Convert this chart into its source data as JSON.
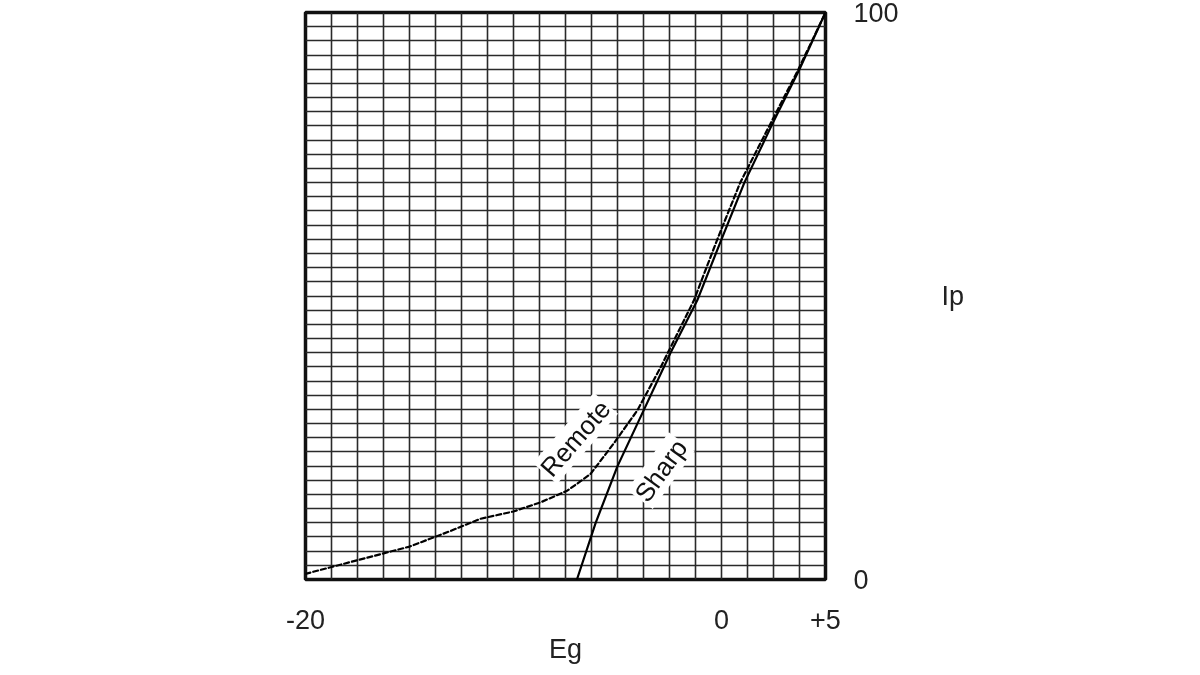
{
  "chart_data": {
    "type": "line",
    "xlabel": "Eg",
    "ylabel": "Ip",
    "xlim": [
      -20,
      5
    ],
    "ylim": [
      0,
      100
    ],
    "xticks": [
      -20,
      {
        "value": -18.75,
        "label": null
      },
      {
        "value": -17.5,
        "label": null
      },
      {
        "value": -16.25,
        "label": null
      },
      {
        "value": -15,
        "label": null
      },
      {
        "value": -13.75,
        "label": null
      },
      {
        "value": -12.5,
        "label": null
      },
      {
        "value": -11.25,
        "label": null
      },
      {
        "value": -10,
        "label": null
      },
      {
        "value": -8.75,
        "label": null
      },
      {
        "value": -7.5,
        "label": null
      },
      {
        "value": -6.25,
        "label": null
      },
      {
        "value": -5,
        "label": null
      },
      {
        "value": -3.75,
        "label": null
      },
      {
        "value": -2.5,
        "label": null
      },
      {
        "value": -1.25,
        "label": null
      },
      0,
      {
        "value": 1.25,
        "label": null
      },
      {
        "value": 2.5,
        "label": null
      },
      {
        "value": 3.75,
        "label": null
      },
      {
        "value": 5,
        "label": "+5"
      }
    ],
    "yticks": [
      0,
      {
        "value": 2.5,
        "label": null
      },
      {
        "value": 5,
        "label": null
      },
      {
        "value": 7.5,
        "label": null
      },
      {
        "value": 10,
        "label": null
      },
      {
        "value": 12.5,
        "label": null
      },
      {
        "value": 15,
        "label": null
      },
      {
        "value": 17.5,
        "label": null
      },
      {
        "value": 20,
        "label": null
      },
      {
        "value": 22.5,
        "label": null
      },
      {
        "value": 25,
        "label": null
      },
      {
        "value": 27.5,
        "label": null
      },
      {
        "value": 30,
        "label": null
      },
      {
        "value": 32.5,
        "label": null
      },
      {
        "value": 35,
        "label": null
      },
      {
        "value": 37.5,
        "label": null
      },
      {
        "value": 40,
        "label": null
      },
      {
        "value": 42.5,
        "label": null
      },
      {
        "value": 45,
        "label": null
      },
      {
        "value": 47.5,
        "label": null
      },
      {
        "value": 50,
        "label": null
      },
      {
        "value": 52.5,
        "label": null
      },
      {
        "value": 55,
        "label": null
      },
      {
        "value": 57.5,
        "label": null
      },
      {
        "value": 60,
        "label": null
      },
      {
        "value": 62.5,
        "label": null
      },
      {
        "value": 65,
        "label": null
      },
      {
        "value": 67.5,
        "label": null
      },
      {
        "value": 70,
        "label": null
      },
      {
        "value": 72.5,
        "label": null
      },
      {
        "value": 75,
        "label": null
      },
      {
        "value": 77.5,
        "label": null
      },
      {
        "value": 80,
        "label": null
      },
      {
        "value": 82.5,
        "label": null
      },
      {
        "value": 85,
        "label": null
      },
      {
        "value": 87.5,
        "label": null
      },
      {
        "value": 90,
        "label": null
      },
      {
        "value": 92.5,
        "label": null
      },
      {
        "value": 95,
        "label": null
      },
      {
        "value": 97.5,
        "label": null
      },
      100
    ],
    "grid": true,
    "series": [
      {
        "name": "Remote",
        "color": "#000000",
        "line_style": "dashed",
        "x": [
          -20,
          -17.5,
          -15,
          -13,
          -11.6,
          -10,
          -8.7,
          -7.4,
          -6.3,
          -5.2,
          -4.05,
          -2.93,
          -1.33,
          -0.2,
          0.9,
          2.3,
          3.7,
          5
        ],
        "values": [
          1,
          3.4,
          5.8,
          8.6,
          10.7,
          12,
          13.6,
          15.7,
          18.6,
          23.9,
          29.8,
          37.4,
          49.2,
          60,
          70,
          80,
          90,
          100
        ]
      },
      {
        "name": "Sharp",
        "color": "#000000",
        "line_style": "solid",
        "x": [
          -6.95,
          -6.05,
          -5.0,
          -3.72,
          -2.45,
          -1.17,
          0,
          1.1,
          2.4,
          3.75,
          5
        ],
        "values": [
          0,
          10,
          20,
          30,
          40,
          49.2,
          60,
          70,
          80,
          90,
          100
        ]
      }
    ]
  }
}
